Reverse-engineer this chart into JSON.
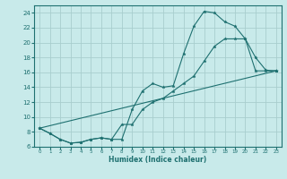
{
  "xlabel": "Humidex (Indice chaleur)",
  "bg_color": "#c8eaea",
  "grid_color": "#a8cece",
  "line_color": "#1e7070",
  "xlim": [
    -0.5,
    23.5
  ],
  "ylim": [
    6,
    25
  ],
  "xticks": [
    0,
    1,
    2,
    3,
    4,
    5,
    6,
    7,
    8,
    9,
    10,
    11,
    12,
    13,
    14,
    15,
    16,
    17,
    18,
    19,
    20,
    21,
    22,
    23
  ],
  "yticks": [
    6,
    8,
    10,
    12,
    14,
    16,
    18,
    20,
    22,
    24
  ],
  "series1_x": [
    0,
    1,
    2,
    3,
    4,
    5,
    6,
    7,
    8,
    9,
    10,
    11,
    12,
    13,
    14,
    15,
    16,
    17,
    18,
    19,
    20,
    21,
    22,
    23
  ],
  "series1_y": [
    8.5,
    7.8,
    7.0,
    6.5,
    6.6,
    7.0,
    7.2,
    7.0,
    7.0,
    11.0,
    13.5,
    14.5,
    14.0,
    14.2,
    18.5,
    22.2,
    24.2,
    24.0,
    22.8,
    22.2,
    20.5,
    18.0,
    16.3,
    16.2
  ],
  "series2_x": [
    0,
    1,
    2,
    3,
    4,
    5,
    6,
    7,
    8,
    9,
    10,
    11,
    12,
    13,
    14,
    15,
    16,
    17,
    18,
    19,
    20,
    21,
    22,
    23
  ],
  "series2_y": [
    8.5,
    7.8,
    7.0,
    6.5,
    6.6,
    7.0,
    7.2,
    7.0,
    9.0,
    9.0,
    11.0,
    12.0,
    12.5,
    13.5,
    14.5,
    15.5,
    17.5,
    19.5,
    20.5,
    20.5,
    20.5,
    16.2,
    16.2,
    16.2
  ],
  "series3_x": [
    0,
    23
  ],
  "series3_y": [
    8.5,
    16.2
  ],
  "xtick_fontsize": 4.0,
  "ytick_fontsize": 5.0,
  "xlabel_fontsize": 5.5,
  "marker_size": 2.5,
  "linewidth": 0.8
}
